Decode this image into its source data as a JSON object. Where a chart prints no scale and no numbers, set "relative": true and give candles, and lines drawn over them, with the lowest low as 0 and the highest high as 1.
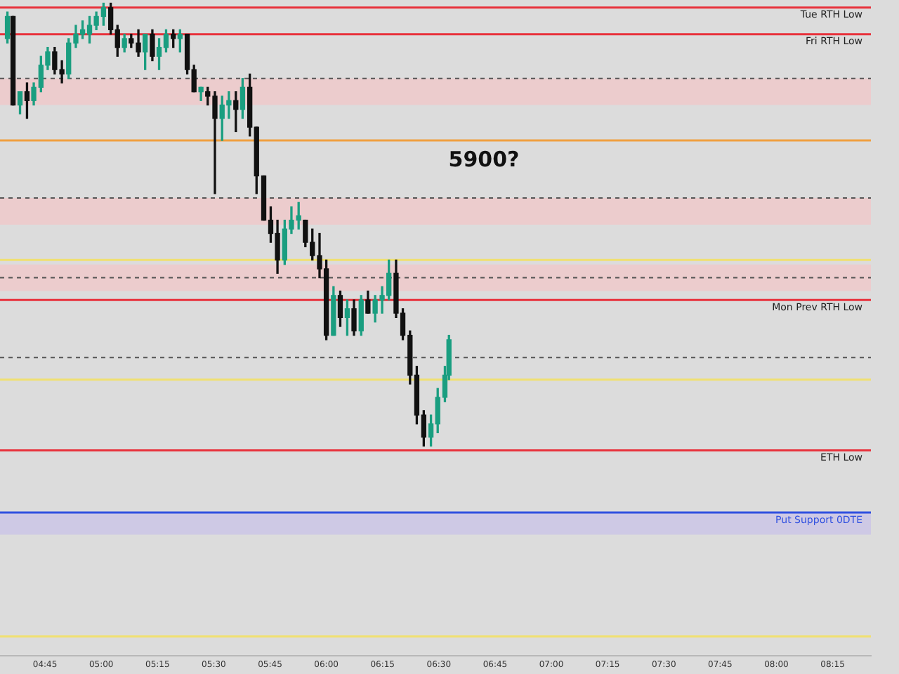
{
  "chart_data": {
    "type": "candlestick",
    "relative": true,
    "x": [
      4.583,
      4.608,
      4.639,
      4.67,
      4.7,
      4.732,
      4.762,
      4.793,
      4.825,
      4.855,
      4.887,
      4.917,
      4.948,
      4.978,
      5.01,
      5.042,
      5.072,
      5.103,
      5.133,
      5.165,
      5.195,
      5.227,
      5.257,
      5.288,
      5.32,
      5.35,
      5.382,
      5.412,
      5.443,
      5.473,
      5.505,
      5.537,
      5.567,
      5.598,
      5.628,
      5.66,
      5.69,
      5.722,
      5.753,
      5.783,
      5.815,
      5.845,
      5.877,
      5.907,
      5.938,
      5.97,
      6.0,
      6.032,
      6.062,
      6.093,
      6.123,
      6.155,
      6.185,
      6.217,
      6.248,
      6.278,
      6.31,
      6.34,
      6.372,
      6.402,
      6.433,
      6.465,
      6.495,
      6.527,
      6.545
    ],
    "ohlc": [
      [
        0.92,
        0.98,
        0.91,
        0.97
      ],
      [
        0.97,
        0.97,
        0.77,
        0.77
      ],
      [
        0.77,
        0.8,
        0.75,
        0.8
      ],
      [
        0.8,
        0.82,
        0.74,
        0.78
      ],
      [
        0.78,
        0.82,
        0.77,
        0.81
      ],
      [
        0.81,
        0.88,
        0.8,
        0.86
      ],
      [
        0.86,
        0.9,
        0.85,
        0.89
      ],
      [
        0.89,
        0.9,
        0.84,
        0.85
      ],
      [
        0.85,
        0.87,
        0.82,
        0.84
      ],
      [
        0.84,
        0.92,
        0.83,
        0.91
      ],
      [
        0.91,
        0.95,
        0.9,
        0.93
      ],
      [
        0.93,
        0.96,
        0.92,
        0.94
      ],
      [
        0.93,
        0.97,
        0.91,
        0.95
      ],
      [
        0.95,
        0.98,
        0.94,
        0.97
      ],
      [
        0.97,
        1,
        0.95,
        0.99
      ],
      [
        0.99,
        1,
        0.93,
        0.94
      ],
      [
        0.94,
        0.95,
        0.88,
        0.9
      ],
      [
        0.9,
        0.93,
        0.89,
        0.92
      ],
      [
        0.92,
        0.93,
        0.9,
        0.91
      ],
      [
        0.91,
        0.94,
        0.88,
        0.89
      ],
      [
        0.89,
        0.93,
        0.85,
        0.93
      ],
      [
        0.93,
        0.94,
        0.87,
        0.88
      ],
      [
        0.88,
        0.92,
        0.85,
        0.9
      ],
      [
        0.9,
        0.94,
        0.89,
        0.93
      ],
      [
        0.93,
        0.94,
        0.9,
        0.92
      ],
      [
        0.92,
        0.94,
        0.89,
        0.93
      ],
      [
        0.93,
        0.93,
        0.84,
        0.85
      ],
      [
        0.85,
        0.86,
        0.8,
        0.8
      ],
      [
        0.8,
        0.81,
        0.78,
        0.81
      ],
      [
        0.8,
        0.81,
        0.77,
        0.79
      ],
      [
        0.79,
        0.8,
        0.57,
        0.74
      ],
      [
        0.74,
        0.79,
        0.69,
        0.77
      ],
      [
        0.77,
        0.8,
        0.74,
        0.78
      ],
      [
        0.78,
        0.8,
        0.71,
        0.76
      ],
      [
        0.76,
        0.83,
        0.74,
        0.81
      ],
      [
        0.81,
        0.84,
        0.7,
        0.72
      ],
      [
        0.72,
        0.72,
        0.57,
        0.61
      ],
      [
        0.61,
        0.61,
        0.51,
        0.51
      ],
      [
        0.51,
        0.54,
        0.46,
        0.48
      ],
      [
        0.48,
        0.51,
        0.39,
        0.42
      ],
      [
        0.42,
        0.51,
        0.41,
        0.49
      ],
      [
        0.49,
        0.54,
        0.48,
        0.51
      ],
      [
        0.51,
        0.55,
        0.49,
        0.52
      ],
      [
        0.51,
        0.51,
        0.45,
        0.46
      ],
      [
        0.46,
        0.49,
        0.42,
        0.43
      ],
      [
        0.43,
        0.48,
        0.38,
        0.4
      ],
      [
        0.4,
        0.42,
        0.24,
        0.25
      ],
      [
        0.25,
        0.36,
        0.25,
        0.34
      ],
      [
        0.34,
        0.35,
        0.27,
        0.29
      ],
      [
        0.29,
        0.33,
        0.25,
        0.31
      ],
      [
        0.31,
        0.33,
        0.25,
        0.26
      ],
      [
        0.26,
        0.34,
        0.25,
        0.33
      ],
      [
        0.33,
        0.35,
        0.3,
        0.3
      ],
      [
        0.3,
        0.34,
        0.28,
        0.33
      ],
      [
        0.33,
        0.36,
        0.3,
        0.34
      ],
      [
        0.34,
        0.42,
        0.33,
        0.39
      ],
      [
        0.39,
        0.42,
        0.29,
        0.3
      ],
      [
        0.3,
        0.31,
        0.24,
        0.25
      ],
      [
        0.25,
        0.26,
        0.14,
        0.16
      ],
      [
        0.16,
        0.18,
        0.05,
        0.07
      ],
      [
        0.07,
        0.08,
        0,
        0.02
      ],
      [
        0.02,
        0.07,
        0,
        0.05
      ],
      [
        0.05,
        0.13,
        0.03,
        0.11
      ],
      [
        0.11,
        0.18,
        0.1,
        0.16
      ],
      [
        0.16,
        0.25,
        0.15,
        0.24
      ]
    ],
    "colors": [
      "#1a9e80",
      "#111111",
      "#1a9e80",
      "#111111",
      "#1a9e80",
      "#1a9e80",
      "#1a9e80",
      "#111111",
      "#111111",
      "#1a9e80",
      "#1a9e80",
      "#1a9e80",
      "#1a9e80",
      "#1a9e80",
      "#1a9e80",
      "#111111",
      "#111111",
      "#1a9e80",
      "#111111",
      "#111111",
      "#1a9e80",
      "#111111",
      "#1a9e80",
      "#1a9e80",
      "#111111",
      "#1a9e80",
      "#111111",
      "#111111",
      "#1a9e80",
      "#111111",
      "#111111",
      "#1a9e80",
      "#1a9e80",
      "#111111",
      "#1a9e80",
      "#111111",
      "#111111",
      "#111111",
      "#111111",
      "#111111",
      "#1a9e80",
      "#1a9e80",
      "#1a9e80",
      "#111111",
      "#111111",
      "#111111",
      "#111111",
      "#1a9e80",
      "#111111",
      "#1a9e80",
      "#111111",
      "#1a9e80",
      "#111111",
      "#1a9e80",
      "#1a9e80",
      "#1a9e80",
      "#111111",
      "#111111",
      "#111111",
      "#111111",
      "#111111",
      "#1a9e80",
      "#1a9e80",
      "#1a9e80",
      "#1a9e80"
    ],
    "xlim": [
      4.55,
      8.42
    ],
    "xticks": [
      {
        "value": 4.75,
        "label": "04:45"
      },
      {
        "value": 5,
        "label": "05:00"
      },
      {
        "value": 5.25,
        "label": "05:15"
      },
      {
        "value": 5.5,
        "label": "05:30"
      },
      {
        "value": 5.75,
        "label": "05:45"
      },
      {
        "value": 6,
        "label": "06:00"
      },
      {
        "value": 6.25,
        "label": "06:15"
      },
      {
        "value": 6.5,
        "label": "06:30"
      },
      {
        "value": 6.75,
        "label": "06:45"
      },
      {
        "value": 7,
        "label": "07:00"
      },
      {
        "value": 7.25,
        "label": "07:15"
      },
      {
        "value": 7.5,
        "label": "07:30"
      },
      {
        "value": 7.75,
        "label": "07:45"
      },
      {
        "value": 8,
        "label": "08:00"
      },
      {
        "value": 8.25,
        "label": "08:15"
      }
    ],
    "ref_lines": [
      {
        "axis": "y",
        "value": 0.99,
        "label": "Tue RTH Low",
        "color": "#e8323c"
      },
      {
        "axis": "y",
        "value": 0.93,
        "label": "Fri RTH Low",
        "color": "#e8323c"
      },
      {
        "axis": "y",
        "value": 0.83,
        "color": "#555555",
        "line_style": "dashed"
      },
      {
        "axis": "y",
        "value": 0.69,
        "color": "#f0a040"
      },
      {
        "axis": "y",
        "value": 0.56,
        "color": "#555555",
        "line_style": "dashed"
      },
      {
        "axis": "y",
        "value": 0.42,
        "color": "#f0e070"
      },
      {
        "axis": "y",
        "value": 0.38,
        "color": "#555555",
        "line_style": "dashed"
      },
      {
        "axis": "y",
        "value": 0.33,
        "label": "Mon Prev RTH Low",
        "color": "#e8323c"
      },
      {
        "axis": "y",
        "value": 0.2,
        "color": "#555555",
        "line_style": "dashed"
      },
      {
        "axis": "y",
        "value": 0.15,
        "color": "#f0e070"
      },
      {
        "axis": "y",
        "value": -0.01,
        "label": "ETH Low",
        "color": "#e8323c"
      },
      {
        "axis": "y",
        "value": -0.15,
        "label": "Put Support 0DTE",
        "color": "#3050e0"
      },
      {
        "axis": "y",
        "value": -0.43,
        "color": "#f0e070"
      }
    ],
    "bands": [
      {
        "axis": "y",
        "from": 0.77,
        "to": 0.83,
        "color": "#f2c4c6"
      },
      {
        "axis": "y",
        "from": 0.5,
        "to": 0.56,
        "color": "#f2c4c6"
      },
      {
        "axis": "y",
        "from": 0.35,
        "to": 0.41,
        "color": "#f2c4c6"
      },
      {
        "axis": "y",
        "from": -0.2,
        "to": -0.15,
        "color": "#c8c0e8"
      }
    ],
    "annotations": [
      "5900?"
    ],
    "legend": false,
    "grid": false
  }
}
